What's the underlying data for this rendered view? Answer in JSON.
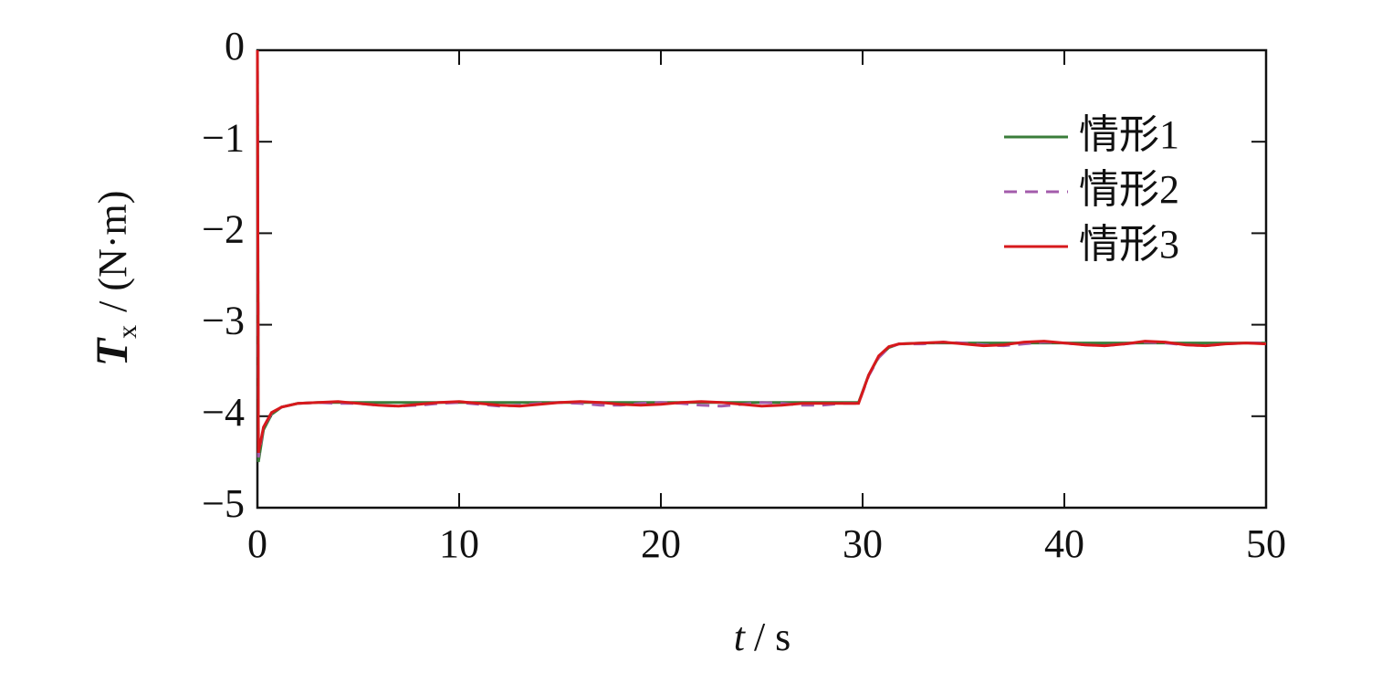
{
  "chart_data": {
    "type": "line",
    "ylabel_symbol": "T",
    "ylabel_subscript": "x",
    "ylabel_unit": "/ (N·m)",
    "xlabel_symbol": "t",
    "xlabel_unit": "/ s",
    "x": [
      0,
      0.05,
      0.3,
      0.7,
      1.2,
      2,
      3,
      4,
      5,
      6,
      7,
      8,
      9,
      10,
      11,
      12,
      13,
      14,
      15,
      16,
      17,
      18,
      19,
      20,
      21,
      22,
      23,
      24,
      25,
      26,
      27,
      28,
      29,
      29.8,
      30.3,
      30.8,
      31.3,
      31.8,
      33,
      34,
      35,
      36,
      37,
      38,
      39,
      40,
      41,
      42,
      43,
      44,
      45,
      46,
      47,
      48,
      49,
      50
    ],
    "series": [
      {
        "name": "情形1",
        "color": "#3a7d3a",
        "dash": "solid",
        "values": [
          0,
          -4.5,
          -4.15,
          -3.98,
          -3.9,
          -3.86,
          -3.85,
          -3.85,
          -3.85,
          -3.85,
          -3.85,
          -3.85,
          -3.85,
          -3.85,
          -3.85,
          -3.85,
          -3.85,
          -3.85,
          -3.85,
          -3.85,
          -3.85,
          -3.85,
          -3.85,
          -3.85,
          -3.85,
          -3.85,
          -3.85,
          -3.85,
          -3.85,
          -3.85,
          -3.85,
          -3.85,
          -3.85,
          -3.85,
          -3.55,
          -3.35,
          -3.25,
          -3.21,
          -3.2,
          -3.2,
          -3.2,
          -3.2,
          -3.2,
          -3.2,
          -3.2,
          -3.2,
          -3.2,
          -3.2,
          -3.2,
          -3.2,
          -3.2,
          -3.2,
          -3.2,
          -3.2,
          -3.2,
          -3.2
        ]
      },
      {
        "name": "情形2",
        "color": "#a35bab",
        "dash": "dashed",
        "values": [
          0,
          -4.45,
          -4.12,
          -3.97,
          -3.9,
          -3.86,
          -3.85,
          -3.86,
          -3.86,
          -3.88,
          -3.89,
          -3.88,
          -3.86,
          -3.85,
          -3.87,
          -3.89,
          -3.88,
          -3.86,
          -3.85,
          -3.86,
          -3.88,
          -3.88,
          -3.86,
          -3.85,
          -3.86,
          -3.88,
          -3.89,
          -3.87,
          -3.85,
          -3.86,
          -3.88,
          -3.88,
          -3.86,
          -3.86,
          -3.56,
          -3.36,
          -3.25,
          -3.21,
          -3.21,
          -3.19,
          -3.2,
          -3.22,
          -3.23,
          -3.21,
          -3.19,
          -3.2,
          -3.22,
          -3.23,
          -3.21,
          -3.19,
          -3.2,
          -3.22,
          -3.23,
          -3.21,
          -3.2,
          -3.2
        ]
      },
      {
        "name": "情形3",
        "color": "#d7191c",
        "dash": "solid",
        "values": [
          0,
          -4.4,
          -4.12,
          -3.96,
          -3.9,
          -3.86,
          -3.85,
          -3.84,
          -3.86,
          -3.88,
          -3.89,
          -3.87,
          -3.85,
          -3.84,
          -3.86,
          -3.88,
          -3.89,
          -3.87,
          -3.85,
          -3.84,
          -3.85,
          -3.87,
          -3.88,
          -3.87,
          -3.85,
          -3.84,
          -3.85,
          -3.87,
          -3.89,
          -3.88,
          -3.86,
          -3.86,
          -3.86,
          -3.86,
          -3.55,
          -3.34,
          -3.24,
          -3.21,
          -3.2,
          -3.19,
          -3.21,
          -3.23,
          -3.22,
          -3.19,
          -3.18,
          -3.2,
          -3.22,
          -3.23,
          -3.21,
          -3.18,
          -3.19,
          -3.22,
          -3.23,
          -3.21,
          -3.2,
          -3.21
        ]
      }
    ],
    "xlim": [
      0,
      50
    ],
    "xticks": [
      0,
      10,
      20,
      30,
      40,
      50
    ],
    "ylim": [
      -5,
      0
    ],
    "yticks": [
      {
        "value": -5,
        "label": "−5"
      },
      {
        "value": -4,
        "label": "−4"
      },
      {
        "value": -3,
        "label": "−3"
      },
      {
        "value": -2,
        "label": "−2"
      },
      {
        "value": -1,
        "label": "−1"
      },
      0
    ],
    "legend": "upper right",
    "grid": false
  }
}
